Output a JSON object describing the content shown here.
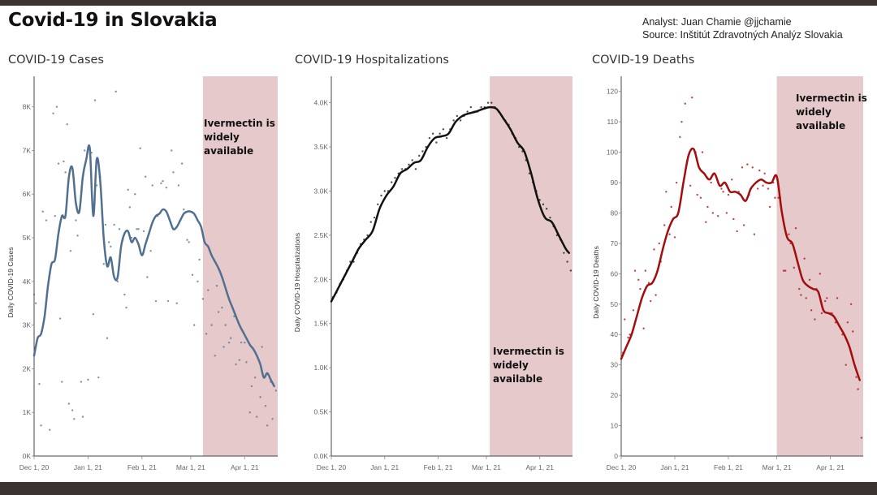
{
  "header": {
    "title": "Covid-19 in Slovakia",
    "analyst": "Analyst: Juan Chamie @jjchamie",
    "source": "Source: Inštitút Zdravotných Analýz  Slovakia"
  },
  "colors": {
    "cases": "#51708f",
    "hospitalizations": "#111111",
    "deaths": "#a30d0d",
    "shade": "#e6c9cb",
    "frame": "#3b3331"
  },
  "chart_data": [
    {
      "type": "line",
      "title": "COVID-19 Cases",
      "ylabel": "Daily COVID-19 Cases",
      "xlabel": "",
      "x_ticks": [
        "Dec 1, 20",
        "Jan 1, 21",
        "Feb 1, 21",
        "Mar 1, 21",
        "Apr 1, 21"
      ],
      "x_tick_days": [
        0,
        31,
        62,
        90,
        121
      ],
      "xlim": [
        0,
        140
      ],
      "y_ticks": [
        "0K",
        "1K",
        "2K",
        "3K",
        "4K",
        "5K",
        "6K",
        "7K",
        "8K"
      ],
      "y_tick_values": [
        0,
        1000,
        2000,
        3000,
        4000,
        5000,
        6000,
        7000,
        8000
      ],
      "ylim": [
        0,
        8700
      ],
      "shaded_region": {
        "start_day": 97,
        "end_day": 140,
        "label": [
          "Ivermectin is",
          "widely",
          "available"
        ]
      },
      "series": [
        {
          "name": "7-day average",
          "x": [
            0,
            2,
            4,
            6,
            8,
            10,
            12,
            14,
            16,
            18,
            20,
            22,
            24,
            26,
            28,
            30,
            32,
            34,
            36,
            38,
            40,
            42,
            44,
            46,
            48,
            50,
            52,
            54,
            56,
            58,
            60,
            62,
            64,
            66,
            68,
            70,
            72,
            74,
            76,
            78,
            80,
            82,
            84,
            86,
            88,
            90,
            92,
            94,
            96,
            98,
            100,
            102,
            104,
            106,
            108,
            110,
            112,
            114,
            116,
            118,
            120,
            122,
            124,
            126,
            128,
            130,
            132,
            134,
            136,
            138
          ],
          "values": [
            2300,
            2700,
            2800,
            3200,
            3900,
            4400,
            4500,
            5100,
            5500,
            5500,
            6400,
            6600,
            5800,
            5600,
            6400,
            6800,
            7050,
            5500,
            6800,
            6300,
            5000,
            4350,
            4550,
            4100,
            4100,
            4800,
            5100,
            5150,
            4900,
            5000,
            4850,
            4600,
            4850,
            5100,
            5350,
            5500,
            5550,
            5650,
            5600,
            5400,
            5200,
            5250,
            5400,
            5550,
            5600,
            5600,
            5550,
            5400,
            5250,
            4900,
            4800,
            4600,
            4450,
            4300,
            4100,
            3850,
            3600,
            3400,
            3200,
            3000,
            2850,
            2700,
            2550,
            2450,
            2300,
            2100,
            1800,
            1900,
            1750,
            1600
          ]
        },
        {
          "name": "daily",
          "x": [
            0,
            1,
            3,
            4,
            5,
            7,
            9,
            11,
            12,
            13,
            14,
            15,
            16,
            17,
            18,
            19,
            20,
            21,
            22,
            23,
            24,
            25,
            27,
            28,
            29,
            31,
            33,
            34,
            35,
            36,
            37,
            38,
            39,
            40,
            41,
            42,
            43,
            44,
            46,
            47,
            48,
            49,
            51,
            52,
            53,
            54,
            55,
            56,
            58,
            59,
            60,
            61,
            63,
            64,
            65,
            67,
            68,
            70,
            71,
            73,
            74,
            76,
            77,
            79,
            80,
            82,
            83,
            85,
            86,
            88,
            89,
            91,
            92,
            94,
            95,
            97,
            99,
            100,
            102,
            104,
            105,
            106,
            108,
            109,
            110,
            112,
            113,
            115,
            116,
            118,
            119,
            121,
            122,
            124,
            125,
            127,
            128,
            130,
            131,
            133,
            134,
            136,
            137,
            139
          ],
          "values": [
            3700,
            3500,
            1650,
            700,
            5600,
            5400,
            600,
            7850,
            5500,
            8000,
            6700,
            3150,
            1700,
            6750,
            6500,
            7600,
            1200,
            4700,
            1050,
            850,
            5400,
            5050,
            1700,
            900,
            7000,
            1750,
            6950,
            3250,
            8150,
            6200,
            1800,
            6400,
            5550,
            4400,
            5300,
            2700,
            4900,
            4800,
            5300,
            8350,
            4000,
            5200,
            4950,
            3700,
            3400,
            6100,
            5700,
            5000,
            6000,
            5200,
            5200,
            7050,
            5150,
            6400,
            4100,
            4700,
            6200,
            3550,
            5500,
            6250,
            6300,
            6150,
            3550,
            7000,
            6500,
            3500,
            6200,
            6700,
            5650,
            4950,
            4900,
            4150,
            3000,
            4000,
            4500,
            3600,
            2800,
            3800,
            3000,
            2300,
            3900,
            3300,
            3400,
            2500,
            3000,
            2600,
            2700,
            3200,
            2100,
            2200,
            2600,
            2600,
            2150,
            1000,
            1600,
            1800,
            900,
            1350,
            2500,
            1150,
            700,
            1700,
            850,
            1500
          ]
        }
      ]
    },
    {
      "type": "line",
      "title": "COVID-19 Hospitalizations",
      "ylabel": "Daily COVID-19 Hospitalizations",
      "xlabel": "",
      "x_ticks": [
        "Dec 1, 20",
        "Jan 1, 21",
        "Feb 1, 21",
        "Mar 1, 21",
        "Apr 1, 21"
      ],
      "x_tick_days": [
        0,
        31,
        62,
        90,
        121
      ],
      "xlim": [
        0,
        140
      ],
      "y_ticks": [
        "0.0K",
        "0.5K",
        "1.0K",
        "1.5K",
        "2.0K",
        "2.5K",
        "3.0K",
        "3.5K",
        "4.0K"
      ],
      "y_tick_values": [
        0,
        500,
        1000,
        1500,
        2000,
        2500,
        3000,
        3500,
        4000
      ],
      "ylim": [
        0,
        4300
      ],
      "shaded_region": {
        "start_day": 92,
        "end_day": 140,
        "label": [
          "Ivermectin is",
          "widely",
          "available"
        ]
      },
      "series": [
        {
          "name": "7-day average",
          "x": [
            0,
            4,
            8,
            12,
            16,
            20,
            24,
            28,
            32,
            36,
            40,
            44,
            48,
            52,
            56,
            60,
            64,
            68,
            72,
            76,
            80,
            84,
            88,
            92,
            96,
            100,
            104,
            108,
            112,
            116,
            120,
            124,
            128,
            132,
            136,
            138
          ],
          "values": [
            1750,
            1900,
            2050,
            2200,
            2350,
            2450,
            2550,
            2800,
            2950,
            3050,
            3200,
            3250,
            3320,
            3350,
            3500,
            3600,
            3620,
            3650,
            3780,
            3850,
            3880,
            3900,
            3930,
            3950,
            3930,
            3820,
            3700,
            3550,
            3450,
            3200,
            2900,
            2700,
            2650,
            2500,
            2350,
            2300
          ]
        },
        {
          "name": "daily",
          "x": [
            1,
            3,
            5,
            7,
            9,
            11,
            13,
            15,
            17,
            19,
            21,
            23,
            25,
            27,
            29,
            31,
            33,
            35,
            37,
            39,
            41,
            43,
            45,
            47,
            49,
            51,
            53,
            55,
            57,
            59,
            61,
            63,
            65,
            67,
            69,
            71,
            73,
            75,
            77,
            79,
            81,
            83,
            85,
            87,
            89,
            91,
            93,
            95,
            97,
            99,
            101,
            103,
            105,
            107,
            109,
            111,
            113,
            115,
            117,
            119,
            121,
            123,
            125,
            127,
            129,
            131,
            133,
            135,
            137,
            139
          ],
          "values": [
            1800,
            1850,
            1950,
            2000,
            2100,
            2200,
            2200,
            2300,
            2400,
            2450,
            2500,
            2650,
            2700,
            2850,
            2950,
            3000,
            3000,
            3100,
            3150,
            3200,
            3250,
            3250,
            3300,
            3350,
            3250,
            3400,
            3450,
            3500,
            3600,
            3650,
            3550,
            3650,
            3700,
            3600,
            3700,
            3800,
            3850,
            3800,
            3850,
            3900,
            3950,
            3900,
            3900,
            3950,
            3950,
            4000,
            4000,
            3950,
            3900,
            3850,
            3800,
            3750,
            3650,
            3600,
            3500,
            3450,
            3350,
            3200,
            3100,
            3000,
            2900,
            2850,
            2800,
            2700,
            2600,
            2500,
            2450,
            2300,
            2200,
            2100
          ]
        }
      ]
    },
    {
      "type": "line",
      "title": "COVID-19 Deaths",
      "ylabel": "Daily COVID-19 Deaths",
      "xlabel": "",
      "x_ticks": [
        "Dec 1, 20",
        "Jan 1, 21",
        "Feb 1, 21",
        "Mar 1, 21",
        "Apr 1, 21"
      ],
      "x_tick_days": [
        0,
        31,
        62,
        90,
        121
      ],
      "xlim": [
        0,
        140
      ],
      "y_ticks": [
        "0",
        "10",
        "20",
        "30",
        "40",
        "50",
        "60",
        "70",
        "80",
        "90",
        "100",
        "110",
        "120"
      ],
      "y_tick_values": [
        0,
        10,
        20,
        30,
        40,
        50,
        60,
        70,
        80,
        90,
        100,
        110,
        120
      ],
      "ylim": [
        0,
        125
      ],
      "shaded_region": {
        "start_day": 90,
        "end_day": 140,
        "label": [
          "Ivermectin is",
          "widely",
          "available"
        ]
      },
      "series": [
        {
          "name": "7-day average",
          "x": [
            0,
            3,
            6,
            9,
            12,
            15,
            18,
            21,
            24,
            27,
            30,
            33,
            36,
            39,
            42,
            45,
            48,
            51,
            54,
            57,
            60,
            63,
            66,
            69,
            72,
            75,
            78,
            81,
            84,
            87,
            90,
            93,
            96,
            99,
            102,
            105,
            108,
            111,
            114,
            117,
            120,
            123,
            126,
            129,
            132,
            135,
            138
          ],
          "values": [
            32,
            36,
            40,
            46,
            52,
            56,
            57,
            61,
            68,
            74,
            78,
            80,
            90,
            99,
            101,
            95,
            93,
            91,
            93,
            89,
            90,
            87,
            87,
            86,
            84,
            88,
            90,
            91,
            90,
            90,
            92,
            80,
            72,
            70,
            64,
            58,
            56,
            55,
            54,
            48,
            47,
            46,
            43,
            40,
            36,
            30,
            25
          ]
        },
        {
          "name": "daily",
          "x": [
            1,
            2,
            4,
            5,
            7,
            8,
            10,
            11,
            13,
            14,
            16,
            17,
            19,
            20,
            22,
            23,
            25,
            26,
            28,
            29,
            31,
            32,
            34,
            35,
            37,
            38,
            40,
            41,
            43,
            44,
            46,
            47,
            49,
            50,
            52,
            53,
            55,
            56,
            58,
            59,
            61,
            62,
            64,
            65,
            67,
            68,
            70,
            71,
            73,
            74,
            76,
            77,
            79,
            80,
            82,
            83,
            85,
            86,
            88,
            89,
            91,
            92,
            94,
            95,
            97,
            98,
            100,
            101,
            103,
            104,
            106,
            107,
            109,
            110,
            112,
            113,
            115,
            116,
            118,
            119,
            121,
            122,
            124,
            125,
            127,
            128,
            130,
            131,
            133,
            134,
            136,
            137,
            139
          ],
          "values": [
            34,
            45,
            39,
            40,
            48,
            61,
            58,
            55,
            42,
            61,
            57,
            51,
            68,
            53,
            70,
            64,
            76,
            87,
            73,
            82,
            72,
            90,
            105,
            110,
            116,
            97,
            89,
            118,
            100,
            86,
            85,
            100,
            77,
            82,
            90,
            80,
            92,
            79,
            88,
            87,
            80,
            86,
            91,
            78,
            74,
            87,
            95,
            76,
            96,
            86,
            95,
            73,
            88,
            94,
            89,
            93,
            88,
            82,
            90,
            85,
            85,
            85,
            61,
            61,
            73,
            70,
            62,
            75,
            55,
            53,
            65,
            52,
            58,
            48,
            45,
            55,
            60,
            47,
            51,
            52,
            47,
            47,
            44,
            52,
            42,
            40,
            30,
            44,
            50,
            41,
            26,
            22,
            6
          ]
        }
      ]
    }
  ]
}
